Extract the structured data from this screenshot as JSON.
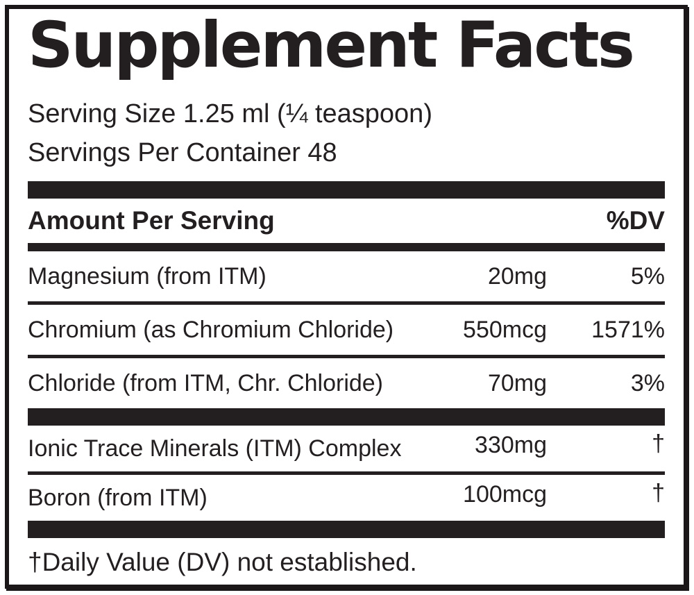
{
  "label": {
    "title": "Supplement Facts",
    "serving_size": "Serving Size 1.25 ml (¼ teaspoon)",
    "servings_per_container": "Servings Per Container 48",
    "header": {
      "amount_per_serving": "Amount Per Serving",
      "dv": "%DV"
    },
    "main_rows": [
      {
        "name": "Magnesium (from ITM)",
        "amount": "20mg",
        "dv": "5%"
      },
      {
        "name": "Chromium (as Chromium Chloride)",
        "amount": "550mcg",
        "dv": "1571%"
      },
      {
        "name": "Chloride (from ITM, Chr. Chloride)",
        "amount": "70mg",
        "dv": "3%"
      }
    ],
    "complex_rows": [
      {
        "name": "Ionic Trace Minerals (ITM) Complex",
        "amount": "330mg",
        "dv": "†"
      },
      {
        "name": "Boron (from ITM)",
        "amount": "100mcg",
        "dv": "†"
      }
    ],
    "footnote": "†Daily Value (DV) not established.",
    "colors": {
      "ink": "#231f20",
      "background": "#ffffff"
    }
  }
}
